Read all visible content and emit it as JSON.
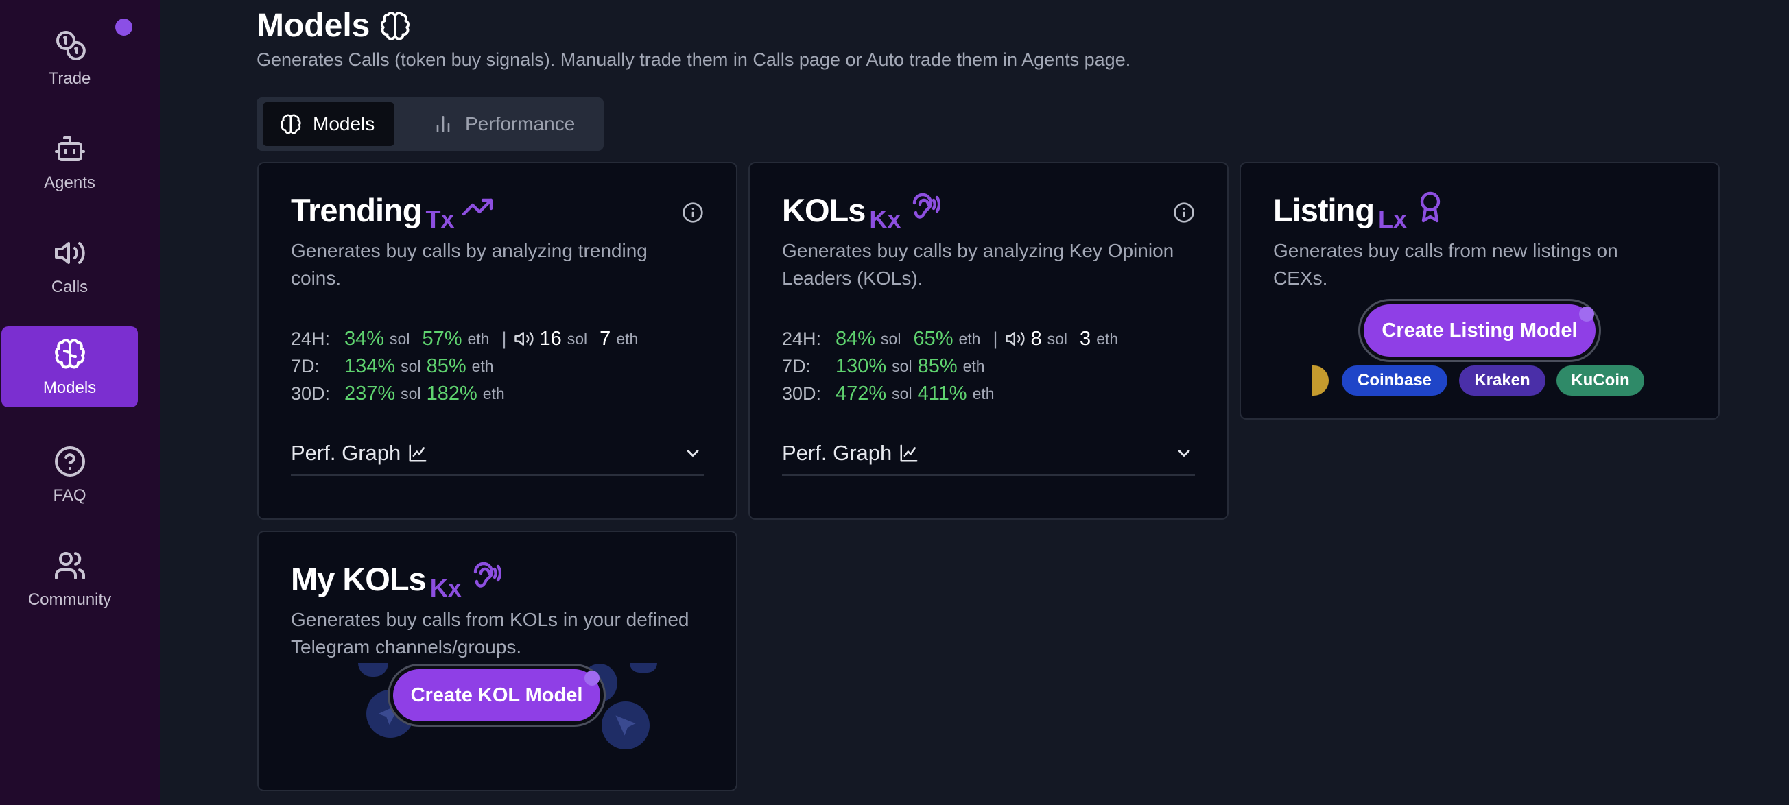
{
  "sidebar": {
    "items": [
      {
        "label": "Trade",
        "icon": "coins-icon"
      },
      {
        "label": "Agents",
        "icon": "robot-icon"
      },
      {
        "label": "Calls",
        "icon": "megaphone-icon"
      },
      {
        "label": "Models",
        "icon": "brain-icon",
        "active": true
      },
      {
        "label": "FAQ",
        "icon": "help-circle-icon"
      },
      {
        "label": "Community",
        "icon": "users-icon"
      }
    ]
  },
  "header": {
    "title": "Models",
    "subtitle": "Generates Calls (token buy signals). Manually trade them in Calls page or Auto trade them in Agents page."
  },
  "tabs": [
    {
      "label": "Models",
      "active": true
    },
    {
      "label": "Performance",
      "active": false
    }
  ],
  "cards": {
    "trending": {
      "name": "Trending",
      "code": "Tx",
      "desc_line1": "Generates buy calls by analyzing trending",
      "desc_line2": "coins.",
      "stats": {
        "h24": {
          "period": "24H:",
          "sol": "34%",
          "eth": "57%",
          "calls_sol": "16",
          "calls_eth": "7"
        },
        "d7": {
          "period": "7D:",
          "sol": "134%",
          "eth": "85%"
        },
        "d30": {
          "period": "30D:",
          "sol": "237%",
          "eth": "182%"
        }
      },
      "perf_label": "Perf. Graph"
    },
    "kols": {
      "name": "KOLs",
      "code": "Kx",
      "desc_line1": "Generates buy calls by analyzing Key Opinion",
      "desc_line2": "Leaders (KOLs).",
      "stats": {
        "h24": {
          "period": "24H:",
          "sol": "84%",
          "eth": "65%",
          "calls_sol": "8",
          "calls_eth": "3"
        },
        "d7": {
          "period": "7D:",
          "sol": "130%",
          "eth": "85%"
        },
        "d30": {
          "period": "30D:",
          "sol": "472%",
          "eth": "411%"
        }
      },
      "perf_label": "Perf. Graph"
    },
    "listing": {
      "name": "Listing",
      "code": "Lx",
      "desc_line1": "Generates buy calls from new listings on",
      "desc_line2": "CEXs.",
      "cta": "Create Listing Model",
      "exchanges": [
        "Coinbase",
        "Kraken",
        "KuCoin"
      ]
    },
    "mykols": {
      "name": "My KOLs",
      "code": "Kx",
      "desc_line1": "Generates buy calls from KOLs in your defined",
      "desc_line2": "Telegram channels/groups.",
      "cta": "Create KOL Model"
    }
  },
  "units": {
    "sol": "sol",
    "eth": "eth",
    "sep": "|"
  },
  "colors": {
    "accent": "#8f3fe6",
    "positive": "#5fd36f",
    "coinbase": "#1f45c8",
    "kraken": "#4a2fa8",
    "kucoin": "#2f8a68"
  }
}
